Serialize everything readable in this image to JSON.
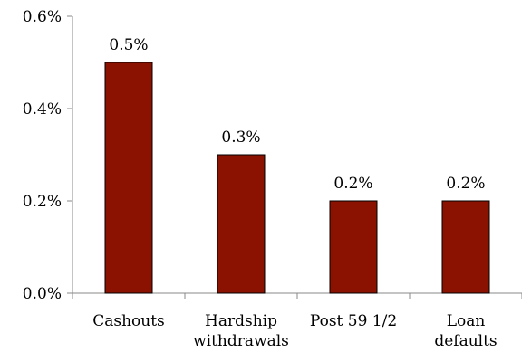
{
  "chart_data": {
    "type": "bar",
    "categories": [
      [
        "Cashouts"
      ],
      [
        "Hardship",
        "withdrawals"
      ],
      [
        "Post 59 1/2"
      ],
      [
        "Loan",
        "defaults"
      ]
    ],
    "values": [
      0.5,
      0.3,
      0.2,
      0.2
    ],
    "data_labels": [
      "0.5%",
      "0.3%",
      "0.2%",
      "0.2%"
    ],
    "ylim": [
      0,
      0.6
    ],
    "y_ticks": [
      0,
      0.2,
      0.4,
      0.6
    ],
    "y_tick_labels": [
      "0.0%",
      "0.2%",
      "0.4%",
      "0.6%"
    ],
    "title": "",
    "xlabel": "",
    "ylabel": "",
    "grid": false,
    "bar_color": "#8b1200",
    "bar_edge_color": "#000000"
  }
}
